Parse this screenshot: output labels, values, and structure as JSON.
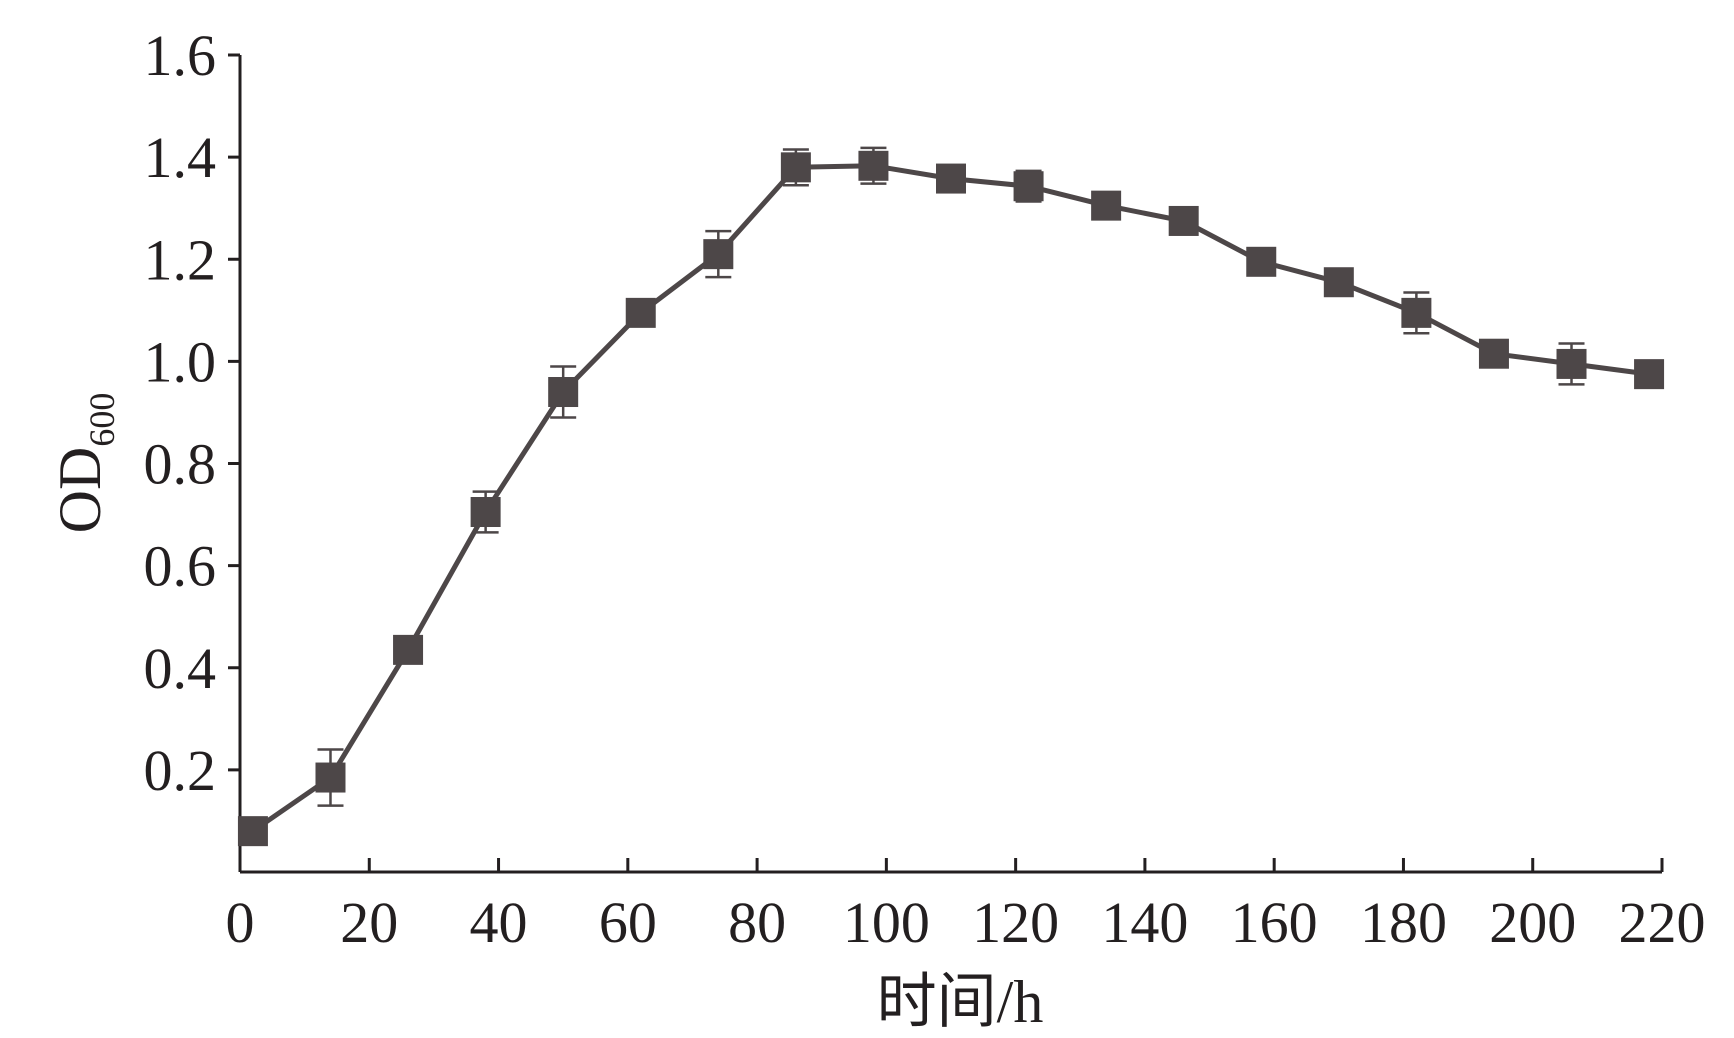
{
  "chart_data": {
    "type": "line",
    "xlabel": "时间/h",
    "ylabel": "OD",
    "ylabel_sub": "600",
    "xlim": [
      0,
      220
    ],
    "ylim": [
      0,
      1.6
    ],
    "xticks": [
      "0",
      "20",
      "40",
      "60",
      "80",
      "100",
      "120",
      "140",
      "160",
      "180",
      "200",
      "220"
    ],
    "yticks": [
      "0.2",
      "0.4",
      "0.6",
      "0.8",
      "1.0",
      "1.2",
      "1.4",
      "1.6"
    ],
    "grid": false,
    "legend": "none",
    "series": [
      {
        "color": "#4d4748",
        "marker": "square",
        "x": [
          2,
          14,
          26,
          38,
          50,
          62,
          74,
          86,
          98,
          110,
          122,
          134,
          146,
          158,
          170,
          182,
          194,
          206,
          218
        ],
        "y": [
          0.08,
          0.185,
          0.435,
          0.705,
          0.94,
          1.095,
          1.21,
          1.38,
          1.383,
          1.358,
          1.343,
          1.305,
          1.275,
          1.195,
          1.155,
          1.095,
          1.015,
          0.995,
          0.975
        ],
        "error": [
          0.0,
          0.055,
          0.0,
          0.04,
          0.05,
          0.0,
          0.045,
          0.035,
          0.035,
          0.0,
          0.03,
          0.0,
          0.0,
          0.0,
          0.0,
          0.04,
          0.0,
          0.04,
          0.0
        ]
      }
    ]
  }
}
